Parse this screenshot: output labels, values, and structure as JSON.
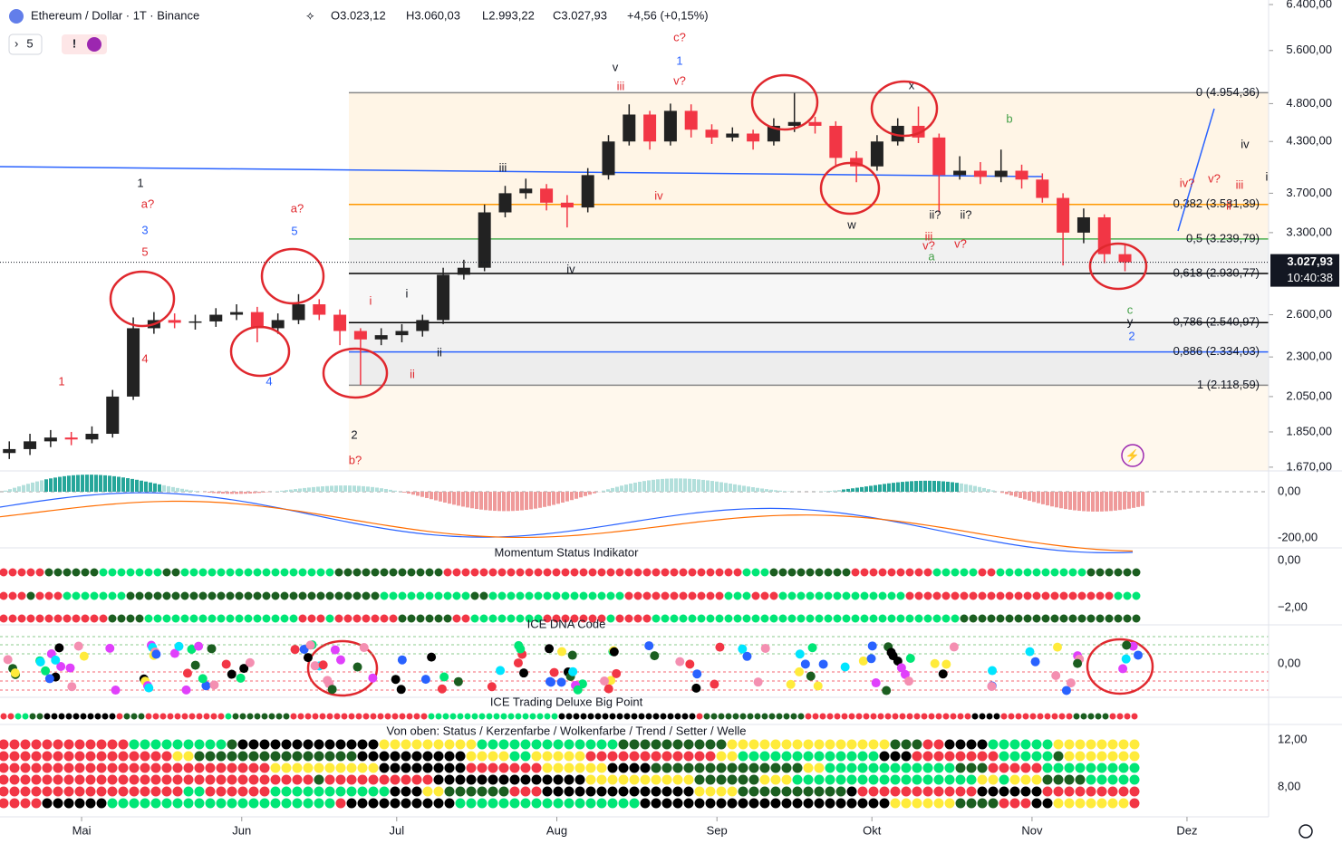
{
  "header": {
    "title": "Ethereum / Dollar · 1T · Binance",
    "ohlc": [
      "O3.023,12",
      "H3.060,03",
      "L2.993,22",
      "C3.027,93",
      "+4,56 (+0,15%)"
    ],
    "indicator_count": "5",
    "alert": "!"
  },
  "chart_data": {
    "type": "candlestick",
    "log_scale": true,
    "x": [
      107,
      111,
      115,
      119,
      123,
      127,
      131,
      135,
      139,
      143,
      147,
      151,
      155,
      159,
      163,
      167,
      171,
      175,
      179,
      183,
      187,
      191,
      195,
      199,
      203,
      207,
      211,
      215,
      219,
      223,
      227,
      231,
      235,
      239,
      243,
      247,
      251,
      255,
      259,
      263,
      267,
      271,
      275,
      279,
      283,
      287,
      291,
      295,
      299,
      303,
      307,
      311,
      315,
      319,
      323
    ],
    "open": [
      1740,
      1760,
      1800,
      1820,
      1810,
      1840,
      2050,
      2500,
      2560,
      2540,
      2550,
      2600,
      2620,
      2500,
      2560,
      2680,
      2600,
      2480,
      2420,
      2450,
      2480,
      2560,
      2920,
      2980,
      3500,
      3700,
      3750,
      3600,
      3550,
      3900,
      4300,
      4650,
      4300,
      4700,
      4450,
      4350,
      4400,
      4300,
      4500,
      4550,
      4500,
      4100,
      4000,
      4300,
      4500,
      4350,
      3900,
      3950,
      3880,
      3950,
      3850,
      3650,
      3300,
      3450,
      3100
    ],
    "high": [
      1800,
      1840,
      1860,
      1850,
      1880,
      2090,
      2580,
      2620,
      2610,
      2600,
      2650,
      2680,
      2660,
      2610,
      2760,
      2720,
      2640,
      2500,
      2500,
      2530,
      2600,
      2980,
      3050,
      3580,
      3780,
      3860,
      3800,
      3680,
      3980,
      4380,
      4790,
      4700,
      4800,
      4790,
      4520,
      4480,
      4450,
      4600,
      4950,
      4620,
      4560,
      4180,
      4380,
      4600,
      4760,
      4400,
      4120,
      4050,
      4200,
      4020,
      3920,
      3700,
      3540,
      3480,
      3200
    ],
    "low": [
      1710,
      1730,
      1770,
      1780,
      1790,
      1820,
      2030,
      2460,
      2500,
      2490,
      2510,
      2560,
      2400,
      2460,
      2530,
      2560,
      2380,
      2120,
      2380,
      2400,
      2440,
      2530,
      2880,
      2950,
      3450,
      3640,
      3520,
      3350,
      3500,
      3850,
      4250,
      4200,
      4250,
      4350,
      4270,
      4300,
      4200,
      4250,
      4420,
      4400,
      4000,
      3820,
      3950,
      4250,
      4280,
      3500,
      3850,
      3800,
      3820,
      3750,
      3600,
      3000,
      3200,
      3020,
      2950
    ],
    "close": [
      1760,
      1800,
      1820,
      1810,
      1840,
      2050,
      2500,
      2560,
      2540,
      2550,
      2600,
      2620,
      2500,
      2560,
      2680,
      2600,
      2480,
      2420,
      2450,
      2480,
      2560,
      2920,
      2980,
      3500,
      3700,
      3750,
      3600,
      3550,
      3900,
      4300,
      4650,
      4300,
      4700,
      4450,
      4350,
      4400,
      4300,
      4500,
      4550,
      4500,
      4100,
      4000,
      4300,
      4500,
      4350,
      3900,
      3950,
      3880,
      3950,
      3850,
      3650,
      3300,
      3450,
      3100,
      3027.93
    ],
    "up_color": "#222222",
    "down_color": "#f23645",
    "xlim": [
      105.2,
      350.8
    ],
    "xticks": [
      {
        "value": 121,
        "label": "Mai"
      },
      {
        "value": 152,
        "label": "Jun"
      },
      {
        "value": 182,
        "label": "Jul"
      },
      {
        "value": 213,
        "label": "Aug"
      },
      {
        "value": 244,
        "label": "Sep"
      },
      {
        "value": 274,
        "label": "Okt"
      },
      {
        "value": 305,
        "label": "Nov"
      },
      {
        "value": 335,
        "label": "Dez"
      }
    ],
    "ylim": [
      1652,
      6485
    ],
    "yticks": [
      {
        "value": 6400,
        "label": "6.400,00"
      },
      {
        "value": 5600,
        "label": "5.600,00"
      },
      {
        "value": 4800,
        "label": "4.800,00"
      },
      {
        "value": 4300,
        "label": "4.300,00"
      },
      {
        "value": 3700,
        "label": "3.700,00"
      },
      {
        "value": 3300,
        "label": "3.300,00"
      },
      {
        "value": 2600,
        "label": "2.600,00"
      },
      {
        "value": 2300,
        "label": "2.300,00"
      },
      {
        "value": 2050,
        "label": "2.050,00"
      },
      {
        "value": 1850,
        "label": "1.850,00"
      },
      {
        "value": 1670,
        "label": "1.670,00"
      }
    ],
    "current_price": {
      "value": 3027.93,
      "label": "3.027,93"
    },
    "countdown": "10:40:38",
    "fib_levels": [
      {
        "value": 4954.36,
        "label": "0 (4.954,36)",
        "color": "#888888"
      },
      {
        "value": 3581.39,
        "label": "0,382 (3.581,39)",
        "color": "#ff9800"
      },
      {
        "value": 3239.79,
        "label": "0,5 (3.239,79)",
        "color": "#4caf50"
      },
      {
        "value": 2930.77,
        "label": "0,618 (2.930,77)",
        "color": "#000000"
      },
      {
        "value": 2540.97,
        "label": "0,786 (2.540,97)",
        "color": "#000000"
      },
      {
        "value": 2334.03,
        "label": "0,886 (2.334,03)",
        "color": "#2962ff"
      },
      {
        "value": 2118.59,
        "label": "1 (2.118,59)",
        "color": "#888888"
      }
    ],
    "annotations": [
      "1",
      "a?",
      "3",
      "5",
      "1",
      "4",
      "a?",
      "5",
      "4",
      "2",
      "b?",
      "i",
      "i",
      "ii",
      "ii",
      "iii",
      "iv",
      "v",
      "iii",
      "c?",
      "1",
      "v?",
      "iv",
      "w",
      "x",
      "b",
      "iii",
      "v?",
      "a",
      "ii?",
      "ii?",
      "v?",
      "iv",
      "iv?",
      "v?",
      "iii",
      "ii",
      "i",
      "c",
      "y",
      "2"
    ]
  },
  "panels": [
    {
      "labels": [
        "0,00",
        "-200,00"
      ]
    },
    {
      "title": "Momentum Status Indikator",
      "labels": [
        "0,00",
        "−2,00"
      ]
    },
    {
      "title": "ICE DNA Code",
      "labels": [
        "0,00"
      ]
    },
    {
      "title": "ICE Trading Deluxe Big Point",
      "labels": []
    },
    {
      "title": "Von oben: Status / Kerzenfarbe / Wolkenfarbe / Trend / Setter / Welle",
      "labels": [
        "12,00",
        "8,00"
      ]
    }
  ]
}
